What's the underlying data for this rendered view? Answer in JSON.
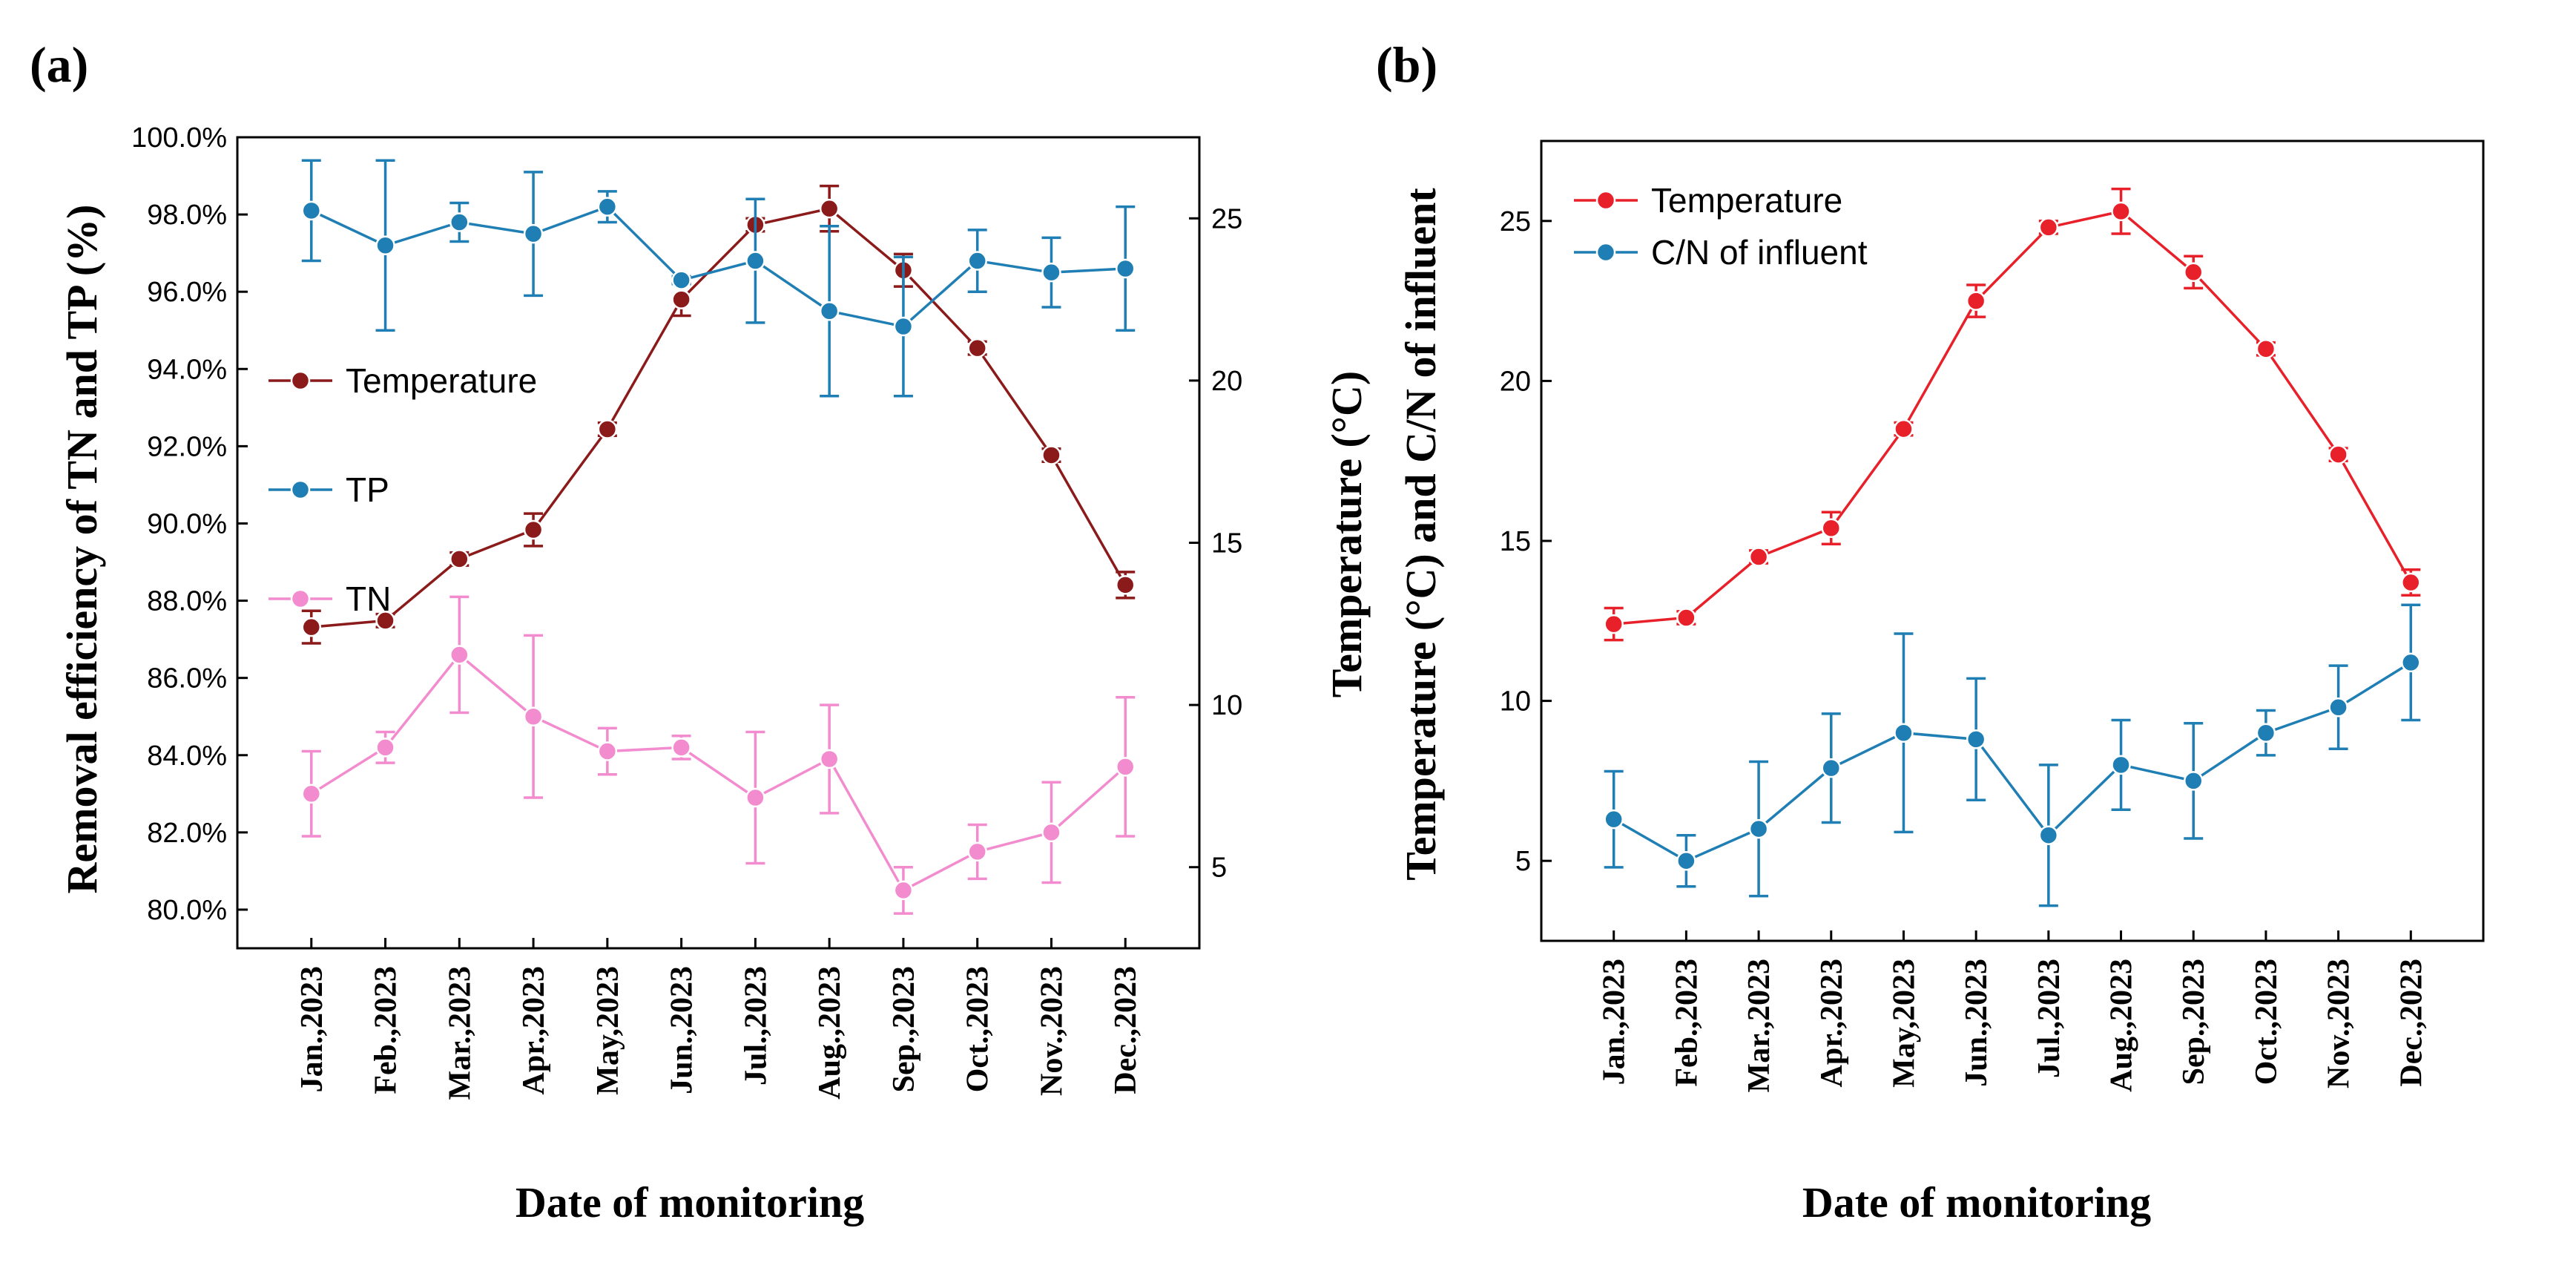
{
  "panels": {
    "a": {
      "label": "(a)",
      "xlabel": "Date of monitoring",
      "ylabel_left": "Removal efficiency of TN and TP (%)",
      "ylabel_right": "Temperature (°C)"
    },
    "b": {
      "label": "(b)",
      "xlabel": "Date of monitoring",
      "ylabel": "Temperature (°C) and C/N of influent"
    }
  },
  "chart_data": [
    {
      "type": "line",
      "panel": "(a)",
      "xlabel": "Date of monitoring",
      "ylabel": "Removal efficiency of TN and TP (%)",
      "ylabel_right": "Temperature (°C)",
      "categories": [
        "Jan.,2023",
        "Feb.,2023",
        "Mar.,2023",
        "Apr.,2023",
        "May,2023",
        "Jun.,2023",
        "Jul.,2023",
        "Aug.,2023",
        "Sep.,2023",
        "Oct.,2023",
        "Nov.,2023",
        "Dec.,2023"
      ],
      "ylim": [
        79,
        100
      ],
      "yticks": [
        80,
        82,
        84,
        86,
        88,
        90,
        92,
        94,
        96,
        98,
        100
      ],
      "ytick_labels": [
        "80.0%",
        "82.0%",
        "84.0%",
        "86.0%",
        "88.0%",
        "90.0%",
        "92.0%",
        "94.0%",
        "96.0%",
        "98.0%",
        "100.0%"
      ],
      "ylim_right": [
        2.5,
        27.5
      ],
      "yticks_right": [
        5,
        10,
        15,
        20,
        25
      ],
      "ytick_labels_right": [
        "5",
        "10",
        "15",
        "20",
        "25"
      ],
      "legend_position": "center-left",
      "series": [
        {
          "name": "Temperature",
          "axis": "right",
          "color": "#8b1a1a",
          "values": [
            12.4,
            12.6,
            14.5,
            15.4,
            18.5,
            22.5,
            24.8,
            25.3,
            23.4,
            21.0,
            17.7,
            13.7
          ],
          "errors": [
            0.5,
            0.2,
            0.2,
            0.5,
            0.2,
            0.5,
            0.2,
            0.7,
            0.5,
            0.2,
            0.2,
            0.4
          ]
        },
        {
          "name": "TP",
          "axis": "left",
          "color": "#1f7fb4",
          "values": [
            98.1,
            97.2,
            97.8,
            97.5,
            98.2,
            96.3,
            96.8,
            95.5,
            95.1,
            96.8,
            96.5,
            96.6
          ],
          "errors": [
            1.3,
            2.2,
            0.5,
            1.6,
            0.4,
            0.1,
            1.6,
            2.2,
            1.8,
            0.8,
            0.9,
            1.6
          ]
        },
        {
          "name": "TN",
          "axis": "left",
          "color": "#f28ccf",
          "values": [
            83.0,
            84.2,
            86.6,
            85.0,
            84.1,
            84.2,
            82.9,
            83.9,
            80.5,
            81.5,
            82.0,
            83.7
          ],
          "errors": [
            1.1,
            0.4,
            1.5,
            2.1,
            0.6,
            0.3,
            1.7,
            1.4,
            0.6,
            0.7,
            1.3,
            1.8
          ]
        }
      ]
    },
    {
      "type": "line",
      "panel": "(b)",
      "xlabel": "Date of monitoring",
      "ylabel": "Temperature (°C) and C/N of influent",
      "categories": [
        "Jan.,2023",
        "Feb.,2023",
        "Mar.,2023",
        "Apr.,2023",
        "May,2023",
        "Jun.,2023",
        "Jul.,2023",
        "Aug.,2023",
        "Sep.,2023",
        "Oct.,2023",
        "Nov.,2023",
        "Dec.,2023"
      ],
      "ylim": [
        2.5,
        27.5
      ],
      "yticks": [
        5,
        10,
        15,
        20,
        25
      ],
      "ytick_labels": [
        "5",
        "10",
        "15",
        "20",
        "25"
      ],
      "legend_position": "top-left",
      "series": [
        {
          "name": "Temperature",
          "color": "#e8202a",
          "values": [
            12.4,
            12.6,
            14.5,
            15.4,
            18.5,
            22.5,
            24.8,
            25.3,
            23.4,
            21.0,
            17.7,
            13.7
          ],
          "errors": [
            0.5,
            0.2,
            0.2,
            0.5,
            0.2,
            0.5,
            0.2,
            0.7,
            0.5,
            0.2,
            0.2,
            0.4
          ]
        },
        {
          "name": "C/N of influent",
          "color": "#1f7fb4",
          "values": [
            6.3,
            5.0,
            6.0,
            7.9,
            9.0,
            8.8,
            5.8,
            8.0,
            7.5,
            9.0,
            9.8,
            11.2
          ],
          "errors": [
            1.5,
            0.8,
            2.1,
            1.7,
            3.1,
            1.9,
            2.2,
            1.4,
            1.8,
            0.7,
            1.3,
            1.8
          ]
        }
      ]
    }
  ]
}
